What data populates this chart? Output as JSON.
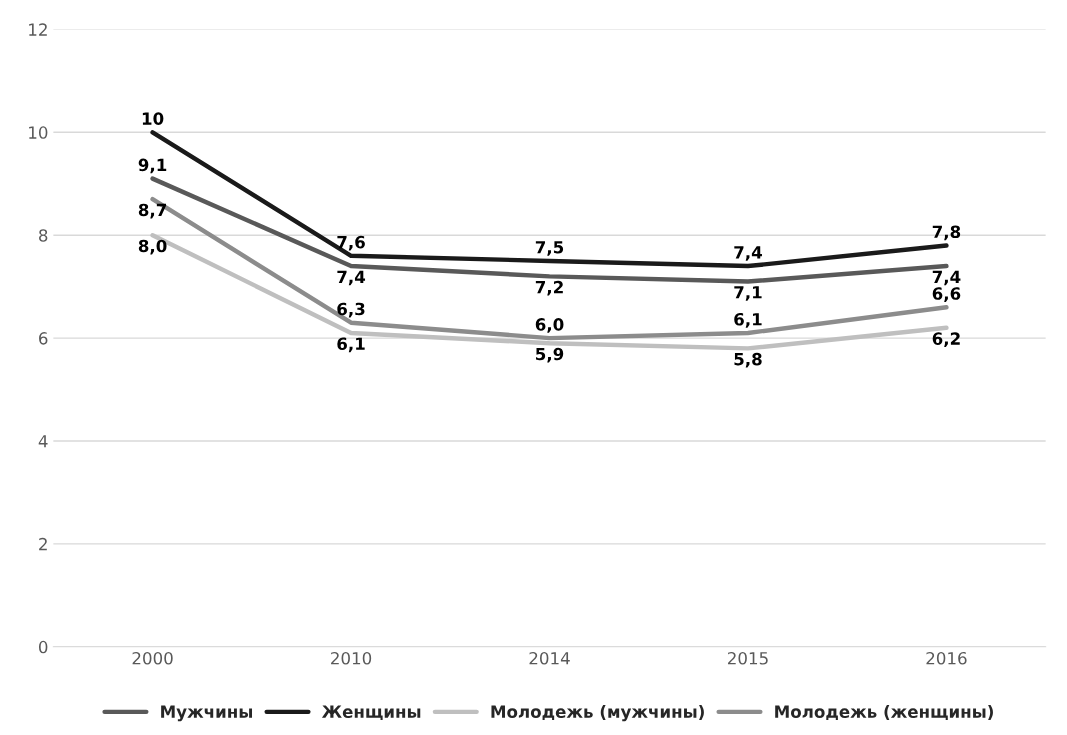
{
  "chart_data": {
    "type": "line",
    "categories": [
      "2000",
      "2010",
      "2014",
      "2015",
      "2016"
    ],
    "series": [
      {
        "name": "Мужчины",
        "color": "#595959",
        "values": [
          9.1,
          7.4,
          7.2,
          7.1,
          7.4
        ],
        "value_labels": [
          "9,1",
          "7,4",
          "7,2",
          "7,1",
          "7,4"
        ]
      },
      {
        "name": "Женщины",
        "color": "#1a1a1a",
        "values": [
          10,
          7.6,
          7.5,
          7.4,
          7.8
        ],
        "value_labels": [
          "10",
          "7,6",
          "7,5",
          "7,4",
          "7,8"
        ]
      },
      {
        "name": "Молодежь (мужчины)",
        "color": "#bfbfbf",
        "values": [
          8.0,
          6.1,
          5.9,
          5.8,
          6.2
        ],
        "value_labels": [
          "8,0",
          "6,1",
          "5,9",
          "5,8",
          "6,2"
        ]
      },
      {
        "name": "Молодежь (женщины)",
        "color": "#8c8c8c",
        "values": [
          8.7,
          6.3,
          6.0,
          6.1,
          6.6
        ],
        "value_labels": [
          "8,7",
          "6,3",
          "6,0",
          "6,1",
          "6,6"
        ]
      }
    ],
    "ylim": [
      0,
      12
    ],
    "yticks": [
      0,
      2,
      4,
      6,
      8,
      10,
      12
    ],
    "grid": "y",
    "legend": "bottom",
    "marker": "none",
    "line_style": "solid"
  }
}
